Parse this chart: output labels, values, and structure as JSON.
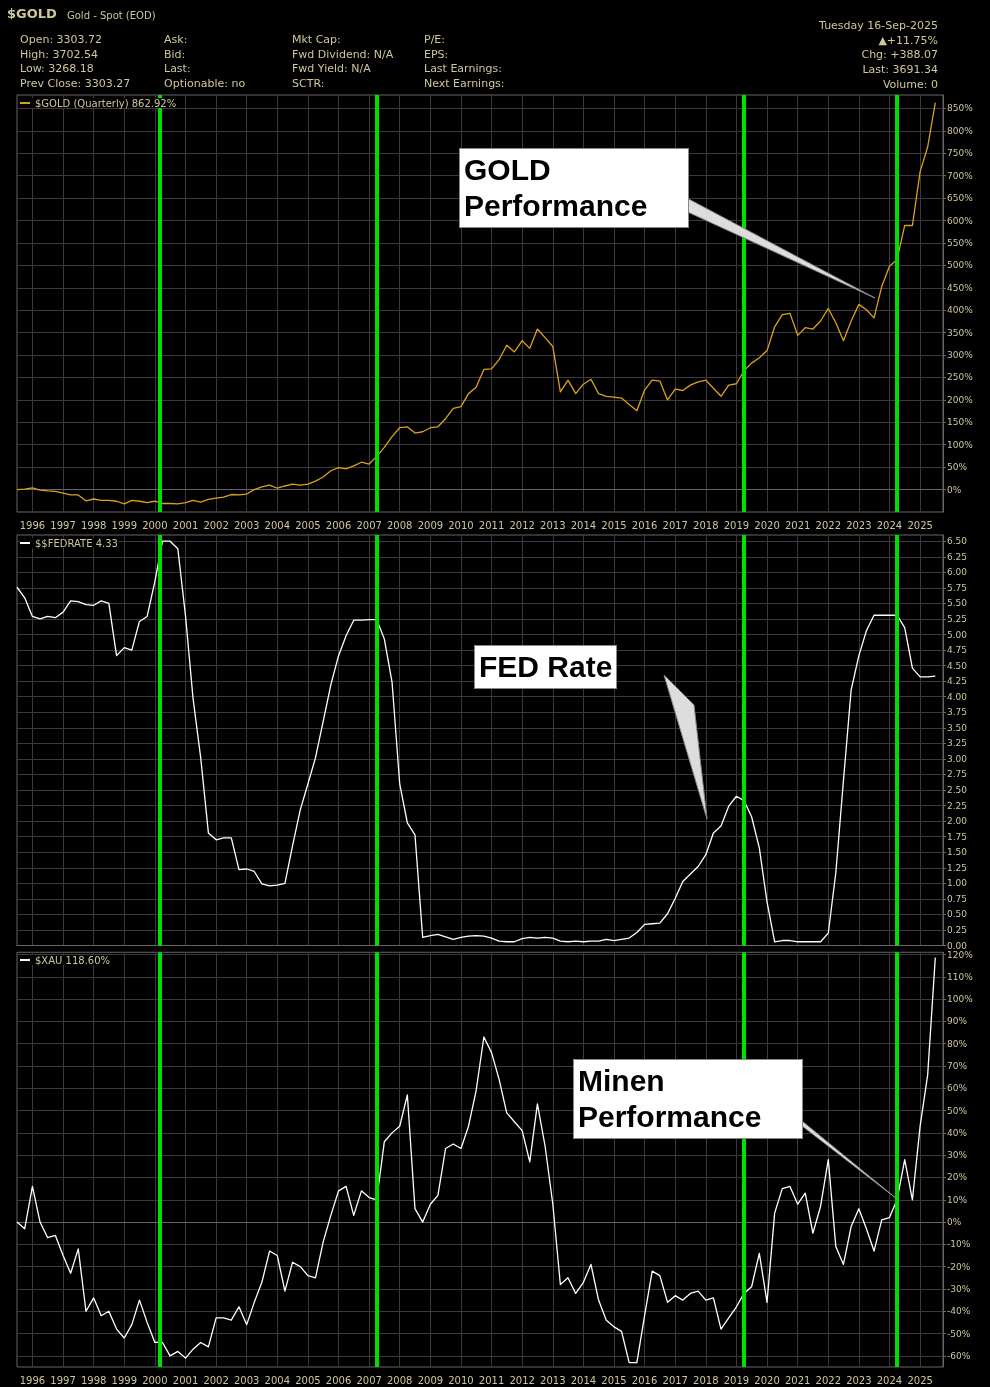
{
  "chart_data": [
    {
      "type": "line",
      "title": "$GOLD",
      "subtitle": "Gold - Spot (EOD)",
      "annotations": [
        "Open: 3303.72",
        "High: 3702.54",
        "Low: 3268.18",
        "Prev Close: 3303.27",
        "Ask:",
        "Bid:",
        "Last:",
        "Optionable: no",
        "Mkt Cap:",
        "Fwd Dividend: N/A",
        "Fwd Yield: N/A",
        "SCTR:",
        "P/E:",
        "EPS:",
        "Last Earnings:",
        "Next Earnings:",
        "Tuesday 16-Sep-2025",
        "▲+11.75%",
        "Chg: +388.07",
        "Last: 3691.34",
        "Volume: 0",
        "GOLD Performance"
      ],
      "x": [
        "1995-07",
        "1995-10",
        "1996-01",
        "1996-04",
        "1996-07",
        "1996-10",
        "1997-01",
        "1997-04",
        "1997-07",
        "1997-10",
        "1998-01",
        "1998-04",
        "1998-07",
        "1998-10",
        "1999-01",
        "1999-04",
        "1999-07",
        "1999-10",
        "2000-01",
        "2000-04",
        "2000-07",
        "2000-10",
        "2001-01",
        "2001-04",
        "2001-07",
        "2001-10",
        "2002-01",
        "2002-04",
        "2002-07",
        "2002-10",
        "2003-01",
        "2003-04",
        "2003-07",
        "2003-10",
        "2004-01",
        "2004-04",
        "2004-07",
        "2004-10",
        "2005-01",
        "2005-04",
        "2005-07",
        "2005-10",
        "2006-01",
        "2006-04",
        "2006-07",
        "2006-10",
        "2007-01",
        "2007-04",
        "2007-07",
        "2007-10",
        "2008-01",
        "2008-04",
        "2008-07",
        "2008-10",
        "2009-01",
        "2009-04",
        "2009-07",
        "2009-10",
        "2010-01",
        "2010-04",
        "2010-07",
        "2010-10",
        "2011-01",
        "2011-04",
        "2011-07",
        "2011-10",
        "2012-01",
        "2012-04",
        "2012-07",
        "2012-10",
        "2013-01",
        "2013-04",
        "2013-07",
        "2013-10",
        "2014-01",
        "2014-04",
        "2014-07",
        "2014-10",
        "2015-01",
        "2015-04",
        "2015-07",
        "2015-10",
        "2016-01",
        "2016-04",
        "2016-07",
        "2016-10",
        "2017-01",
        "2017-04",
        "2017-07",
        "2017-10",
        "2018-01",
        "2018-04",
        "2018-07",
        "2018-10",
        "2019-01",
        "2019-04",
        "2019-07",
        "2019-10",
        "2020-01",
        "2020-04",
        "2020-07",
        "2020-10",
        "2021-01",
        "2021-04",
        "2021-07",
        "2021-10",
        "2022-01",
        "2022-04",
        "2022-07",
        "2022-10",
        "2023-01",
        "2023-04",
        "2023-07",
        "2023-10",
        "2024-01",
        "2024-04",
        "2024-07",
        "2024-10",
        "2025-01",
        "2025-04",
        "2025-07"
      ],
      "series": [
        {
          "name": "$GOLD (Quarterly) 862.92%",
          "color": "#d9a21b",
          "values": [
            0,
            1,
            4,
            -1,
            -3,
            -4,
            -8,
            -12,
            -12,
            -25,
            -21,
            -24,
            -24,
            -26,
            -32,
            -24,
            -26,
            -29,
            -26,
            -31,
            -31,
            -32,
            -29,
            -24,
            -28,
            -22,
            -19,
            -17,
            -11,
            -12,
            -10,
            0,
            6,
            10,
            3,
            8,
            12,
            10,
            12,
            19,
            28,
            42,
            49,
            46,
            53,
            61,
            57,
            74,
            94,
            118,
            138,
            140,
            126,
            129,
            138,
            140,
            158,
            181,
            185,
            214,
            228,
            268,
            269,
            290,
            322,
            307,
            332,
            315,
            358,
            339,
            319,
            218,
            244,
            214,
            235,
            246,
            214,
            208,
            206,
            204,
            190,
            176,
            222,
            244,
            242,
            200,
            224,
            221,
            233,
            240,
            244,
            226,
            208,
            233,
            236,
            265,
            282,
            294,
            310,
            363,
            390,
            393,
            344,
            361,
            358,
            376,
            404,
            372,
            332,
            376,
            413,
            401,
            383,
            453,
            498,
            513,
            589,
            589,
            709,
            764,
            863
          ]
        }
      ],
      "xlim": [
        "1995-07",
        "2025-10"
      ],
      "xticks": [
        "1996",
        "1997",
        "1998",
        "1999",
        "2000",
        "2001",
        "2002",
        "2003",
        "2004",
        "2005",
        "2006",
        "2007",
        "2008",
        "2009",
        "2010",
        "2011",
        "2012",
        "2013",
        "2014",
        "2015",
        "2016",
        "2017",
        "2018",
        "2019",
        "2020",
        "2021",
        "2022",
        "2023",
        "2024",
        "2025"
      ],
      "ylim": [
        -50,
        880
      ],
      "yticks": [
        {
          "value": 0,
          "label": "0%"
        },
        {
          "value": 50,
          "label": "50%"
        },
        {
          "value": 100,
          "label": "100%"
        },
        {
          "value": 150,
          "label": "150%"
        },
        {
          "value": 200,
          "label": "200%"
        },
        {
          "value": 250,
          "label": "250%"
        },
        {
          "value": 300,
          "label": "300%"
        },
        {
          "value": 350,
          "label": "350%"
        },
        {
          "value": 400,
          "label": "400%"
        },
        {
          "value": 450,
          "label": "450%"
        },
        {
          "value": 500,
          "label": "500%"
        },
        {
          "value": 550,
          "label": "550%"
        },
        {
          "value": 600,
          "label": "600%"
        },
        {
          "value": 650,
          "label": "650%"
        },
        {
          "value": 700,
          "label": "700%"
        },
        {
          "value": 750,
          "label": "750%"
        },
        {
          "value": 800,
          "label": "800%"
        },
        {
          "value": 850,
          "label": "850%"
        }
      ],
      "ref_lines": [
        {
          "axis": "x",
          "value": "2000-03",
          "color": "#00e000"
        },
        {
          "axis": "x",
          "value": "2007-04",
          "color": "#00e000"
        },
        {
          "axis": "x",
          "value": "2019-04",
          "color": "#00e000"
        },
        {
          "axis": "x",
          "value": "2024-04",
          "color": "#00e000"
        }
      ],
      "grid": true,
      "legend": "top left",
      "marker": "none"
    },
    {
      "type": "line",
      "annotations": [
        "FED Rate"
      ],
      "x": [
        "1995-07",
        "1995-10",
        "1996-01",
        "1996-04",
        "1996-07",
        "1996-10",
        "1997-01",
        "1997-04",
        "1997-07",
        "1997-10",
        "1998-01",
        "1998-04",
        "1998-07",
        "1998-10",
        "1999-01",
        "1999-04",
        "1999-07",
        "1999-10",
        "2000-01",
        "2000-04",
        "2000-07",
        "2000-10",
        "2001-01",
        "2001-04",
        "2001-07",
        "2001-10",
        "2002-01",
        "2002-04",
        "2002-07",
        "2002-10",
        "2003-01",
        "2003-04",
        "2003-07",
        "2003-10",
        "2004-01",
        "2004-04",
        "2004-07",
        "2004-10",
        "2005-01",
        "2005-04",
        "2005-07",
        "2005-10",
        "2006-01",
        "2006-04",
        "2006-07",
        "2006-10",
        "2007-01",
        "2007-04",
        "2007-07",
        "2007-10",
        "2008-01",
        "2008-04",
        "2008-07",
        "2008-10",
        "2009-01",
        "2009-04",
        "2009-07",
        "2009-10",
        "2010-01",
        "2010-04",
        "2010-07",
        "2010-10",
        "2011-01",
        "2011-04",
        "2011-07",
        "2011-10",
        "2012-01",
        "2012-04",
        "2012-07",
        "2012-10",
        "2013-01",
        "2013-04",
        "2013-07",
        "2013-10",
        "2014-01",
        "2014-04",
        "2014-07",
        "2014-10",
        "2015-01",
        "2015-04",
        "2015-07",
        "2015-10",
        "2016-01",
        "2016-04",
        "2016-07",
        "2016-10",
        "2017-01",
        "2017-04",
        "2017-07",
        "2017-10",
        "2018-01",
        "2018-04",
        "2018-07",
        "2018-10",
        "2019-01",
        "2019-04",
        "2019-07",
        "2019-10",
        "2020-01",
        "2020-04",
        "2020-07",
        "2020-10",
        "2021-01",
        "2021-04",
        "2021-07",
        "2021-10",
        "2022-01",
        "2022-04",
        "2022-07",
        "2022-10",
        "2023-01",
        "2023-04",
        "2023-07",
        "2023-10",
        "2024-01",
        "2024-04",
        "2024-07",
        "2024-10",
        "2025-01",
        "2025-04",
        "2025-07"
      ],
      "series": [
        {
          "name": "$$FEDRATE 4.33",
          "color": "#ffffff",
          "values": [
            5.76,
            5.59,
            5.29,
            5.25,
            5.29,
            5.27,
            5.36,
            5.54,
            5.53,
            5.48,
            5.47,
            5.54,
            5.5,
            4.66,
            4.79,
            4.75,
            5.21,
            5.29,
            5.85,
            6.5,
            6.5,
            6.38,
            5.3,
            3.97,
            3.02,
            1.81,
            1.7,
            1.73,
            1.73,
            1.22,
            1.23,
            1.19,
            0.99,
            0.96,
            0.97,
            1.0,
            1.6,
            2.18,
            2.6,
            3.02,
            3.6,
            4.19,
            4.66,
            4.98,
            5.23,
            5.23,
            5.24,
            5.24,
            4.93,
            4.24,
            2.6,
            1.97,
            1.78,
            0.13,
            0.16,
            0.18,
            0.14,
            0.1,
            0.13,
            0.15,
            0.16,
            0.15,
            0.12,
            0.07,
            0.06,
            0.06,
            0.11,
            0.13,
            0.12,
            0.13,
            0.12,
            0.07,
            0.06,
            0.07,
            0.06,
            0.07,
            0.07,
            0.1,
            0.08,
            0.1,
            0.12,
            0.21,
            0.34,
            0.35,
            0.36,
            0.51,
            0.76,
            1.03,
            1.15,
            1.27,
            1.46,
            1.81,
            1.92,
            2.24,
            2.4,
            2.33,
            2.07,
            1.57,
            0.7,
            0.06,
            0.08,
            0.08,
            0.06,
            0.06,
            0.06,
            0.06,
            0.2,
            1.17,
            2.65,
            4.11,
            4.66,
            5.06,
            5.31,
            5.31,
            5.31,
            5.31,
            5.11,
            4.46,
            4.32,
            4.32,
            4.33
          ]
        }
      ],
      "xlim": [
        "1995-07",
        "2025-10"
      ],
      "xticks": [
        "1996",
        "1997",
        "1998",
        "1999",
        "2000",
        "2001",
        "2002",
        "2003",
        "2004",
        "2005",
        "2006",
        "2007",
        "2008",
        "2009",
        "2010",
        "2011",
        "2012",
        "2013",
        "2014",
        "2015",
        "2016",
        "2017",
        "2018",
        "2019",
        "2020",
        "2021",
        "2022",
        "2023",
        "2024",
        "2025"
      ],
      "ylim": [
        0,
        6.6
      ],
      "yticks": [
        {
          "value": 0,
          "label": "0.00"
        },
        {
          "value": 0.25,
          "label": "0.25"
        },
        {
          "value": 0.5,
          "label": "0.50"
        },
        {
          "value": 0.75,
          "label": "0.75"
        },
        {
          "value": 1,
          "label": "1.00"
        },
        {
          "value": 1.25,
          "label": "1.25"
        },
        {
          "value": 1.5,
          "label": "1.50"
        },
        {
          "value": 1.75,
          "label": "1.75"
        },
        {
          "value": 2,
          "label": "2.00"
        },
        {
          "value": 2.25,
          "label": "2.25"
        },
        {
          "value": 2.5,
          "label": "2.50"
        },
        {
          "value": 2.75,
          "label": "2.75"
        },
        {
          "value": 3,
          "label": "3.00"
        },
        {
          "value": 3.25,
          "label": "3.25"
        },
        {
          "value": 3.5,
          "label": "3.50"
        },
        {
          "value": 3.75,
          "label": "3.75"
        },
        {
          "value": 4,
          "label": "4.00"
        },
        {
          "value": 4.25,
          "label": "4.25"
        },
        {
          "value": 4.5,
          "label": "4.50"
        },
        {
          "value": 4.75,
          "label": "4.75"
        },
        {
          "value": 5,
          "label": "5.00"
        },
        {
          "value": 5.25,
          "label": "5.25"
        },
        {
          "value": 5.5,
          "label": "5.50"
        },
        {
          "value": 5.75,
          "label": "5.75"
        },
        {
          "value": 6,
          "label": "6.00"
        },
        {
          "value": 6.25,
          "label": "6.25"
        },
        {
          "value": 6.5,
          "label": "6.50"
        }
      ],
      "ref_lines": [
        {
          "axis": "x",
          "value": "2000-03",
          "color": "#00e000"
        },
        {
          "axis": "x",
          "value": "2007-04",
          "color": "#00e000"
        },
        {
          "axis": "x",
          "value": "2019-04",
          "color": "#00e000"
        },
        {
          "axis": "x",
          "value": "2024-04",
          "color": "#00e000"
        }
      ],
      "grid": true,
      "legend": "top left",
      "marker": "none",
      "tick_labels": "y"
    },
    {
      "type": "line",
      "annotations": [
        "Minen Performance"
      ],
      "x": [
        "1995-07",
        "1995-10",
        "1996-01",
        "1996-04",
        "1996-07",
        "1996-10",
        "1997-01",
        "1997-04",
        "1997-07",
        "1997-10",
        "1998-01",
        "1998-04",
        "1998-07",
        "1998-10",
        "1999-01",
        "1999-04",
        "1999-07",
        "1999-10",
        "2000-01",
        "2000-04",
        "2000-07",
        "2000-10",
        "2001-01",
        "2001-04",
        "2001-07",
        "2001-10",
        "2002-01",
        "2002-04",
        "2002-07",
        "2002-10",
        "2003-01",
        "2003-04",
        "2003-07",
        "2003-10",
        "2004-01",
        "2004-04",
        "2004-07",
        "2004-10",
        "2005-01",
        "2005-04",
        "2005-07",
        "2005-10",
        "2006-01",
        "2006-04",
        "2006-07",
        "2006-10",
        "2007-01",
        "2007-04",
        "2007-07",
        "2007-10",
        "2008-01",
        "2008-04",
        "2008-07",
        "2008-10",
        "2009-01",
        "2009-04",
        "2009-07",
        "2009-10",
        "2010-01",
        "2010-04",
        "2010-07",
        "2010-10",
        "2011-01",
        "2011-04",
        "2011-07",
        "2011-10",
        "2012-01",
        "2012-04",
        "2012-07",
        "2012-10",
        "2013-01",
        "2013-04",
        "2013-07",
        "2013-10",
        "2014-01",
        "2014-04",
        "2014-07",
        "2014-10",
        "2015-01",
        "2015-04",
        "2015-07",
        "2015-10",
        "2016-01",
        "2016-04",
        "2016-07",
        "2016-10",
        "2017-01",
        "2017-04",
        "2017-07",
        "2017-10",
        "2018-01",
        "2018-04",
        "2018-07",
        "2018-10",
        "2019-01",
        "2019-04",
        "2019-07",
        "2019-10",
        "2020-01",
        "2020-04",
        "2020-07",
        "2020-10",
        "2021-01",
        "2021-04",
        "2021-07",
        "2021-10",
        "2022-01",
        "2022-04",
        "2022-07",
        "2022-10",
        "2023-01",
        "2023-04",
        "2023-07",
        "2023-10",
        "2024-01",
        "2024-04",
        "2024-07",
        "2024-10",
        "2025-01",
        "2025-04",
        "2025-07"
      ],
      "series": [
        {
          "name": "$XAU 118.60%",
          "color": "#ffffff",
          "values": [
            0,
            -3,
            16,
            0,
            -7,
            -6,
            -15,
            -23,
            -12,
            -40,
            -34,
            -42,
            -40,
            -48,
            -52,
            -46,
            -35,
            -45,
            -54,
            -54,
            -60,
            -58,
            -61,
            -57,
            -54,
            -56,
            -43,
            -43,
            -44,
            -38,
            -46,
            -36,
            -27,
            -13,
            -15,
            -31,
            -18,
            -20,
            -24,
            -25,
            -9,
            3,
            14,
            16,
            3,
            14,
            11,
            10,
            36,
            40,
            43,
            57,
            6,
            0,
            8,
            12,
            33,
            35,
            33,
            43,
            59,
            83,
            76,
            64,
            49,
            45,
            41,
            27,
            53,
            34,
            8,
            -28,
            -25,
            -32,
            -27,
            -19,
            -35,
            -44,
            -47,
            -49,
            -63,
            -63,
            -42,
            -22,
            -24,
            -36,
            -33,
            -35,
            -32,
            -31,
            -35,
            -34,
            -48,
            -43,
            -38,
            -32,
            -29,
            -14,
            -36,
            4,
            15,
            16,
            8,
            13,
            -5,
            7,
            28,
            -11,
            -19,
            -2,
            6,
            -3,
            -13,
            1,
            2,
            10,
            28,
            10,
            43,
            66,
            118.6
          ]
        }
      ],
      "xlim": [
        "1995-07",
        "2025-10"
      ],
      "xticks": [
        "1996",
        "1997",
        "1998",
        "1999",
        "2000",
        "2001",
        "2002",
        "2003",
        "2004",
        "2005",
        "2006",
        "2007",
        "2008",
        "2009",
        "2010",
        "2011",
        "2012",
        "2013",
        "2014",
        "2015",
        "2016",
        "2017",
        "2018",
        "2019",
        "2020",
        "2021",
        "2022",
        "2023",
        "2024",
        "2025"
      ],
      "ylim": [
        -65,
        121
      ],
      "yticks": [
        {
          "value": -60,
          "label": "-60%"
        },
        {
          "value": -50,
          "label": "-50%"
        },
        {
          "value": -40,
          "label": "-40%"
        },
        {
          "value": -30,
          "label": "-30%"
        },
        {
          "value": -20,
          "label": "-20%"
        },
        {
          "value": -10,
          "label": "-10%"
        },
        {
          "value": 0,
          "label": "0%"
        },
        {
          "value": 10,
          "label": "10%"
        },
        {
          "value": 20,
          "label": "20%"
        },
        {
          "value": 30,
          "label": "30%"
        },
        {
          "value": 40,
          "label": "40%"
        },
        {
          "value": 50,
          "label": "50%"
        },
        {
          "value": 60,
          "label": "60%"
        },
        {
          "value": 70,
          "label": "70%"
        },
        {
          "value": 80,
          "label": "80%"
        },
        {
          "value": 90,
          "label": "90%"
        },
        {
          "value": 100,
          "label": "100%"
        },
        {
          "value": 110,
          "label": "110%"
        },
        {
          "value": 120,
          "label": "120%"
        }
      ],
      "ref_lines": [
        {
          "axis": "x",
          "value": "2000-03",
          "color": "#00e000"
        },
        {
          "axis": "x",
          "value": "2007-04",
          "color": "#00e000"
        },
        {
          "axis": "x",
          "value": "2019-04",
          "color": "#00e000"
        },
        {
          "axis": "x",
          "value": "2024-04",
          "color": "#00e000"
        }
      ],
      "grid": true,
      "legend": "top left",
      "marker": "none"
    }
  ]
}
